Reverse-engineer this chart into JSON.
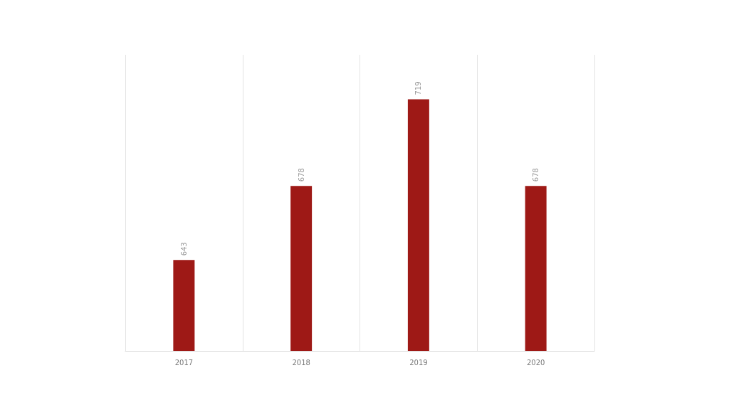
{
  "chart_data": {
    "type": "bar",
    "categories": [
      "2017",
      "2018",
      "2019",
      "2020"
    ],
    "values": [
      643,
      678,
      719,
      678
    ],
    "color": "#9e1916",
    "ylim": [
      600,
      740
    ],
    "data_labels": true,
    "grid": "x",
    "tick_labels": "x"
  }
}
